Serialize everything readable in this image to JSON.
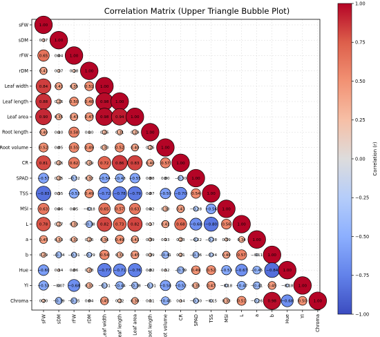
{
  "chart_data": {
    "type": "heatmap",
    "title": "Correlation Matrix (Upper Triangle Bubble Plot)",
    "variables": [
      "sFW",
      "sDM",
      "rFW",
      "rDM",
      "Leaf width",
      "Leaf length",
      "Leaf area",
      "Root length",
      "Root volume",
      "CR",
      "SPAD",
      "TSS",
      "MSI",
      "L",
      "a",
      "b",
      "Hue",
      "YI",
      "Chroma"
    ],
    "lower_triangle": [
      [],
      [
        0.17
      ],
      [
        0.65,
        0.04
      ],
      [
        0.41,
        0.17,
        0.18
      ],
      [
        0.84,
        0.41,
        0.35,
        0.51
      ],
      [
        0.88,
        0.26,
        0.5,
        0.48,
        0.98
      ],
      [
        0.9,
        0.35,
        0.43,
        0.47,
        0.98,
        0.94
      ],
      [
        0.4,
        0.1,
        0.58,
        0.1,
        0.26,
        0.31,
        0.29
      ],
      [
        0.52,
        0.05,
        0.55,
        0.49,
        0.3,
        0.52,
        0.4,
        0.25
      ],
      [
        0.81,
        0.26,
        0.62,
        0.29,
        0.72,
        0.86,
        0.83,
        0.4,
        0.57
      ],
      [
        -0.57,
        0.25,
        -0.32,
        0.32,
        -0.54,
        -0.48,
        -0.55,
        0.08,
        0.0,
        -0.3
      ],
      [
        -0.83,
        0.15,
        -0.53,
        0.49,
        -0.72,
        -0.78,
        -0.79,
        0.07,
        -0.59,
        -0.7,
        0.54
      ],
      [
        0.63,
        0.06,
        0.05,
        -0.18,
        0.65,
        0.57,
        0.63,
        0.02,
        0.3,
        0.43,
        -0.28,
        -0.56
      ],
      [
        0.78,
        0.27,
        0.33,
        -0.38,
        0.82,
        0.73,
        0.82,
        0.17,
        0.41,
        0.68,
        -0.68,
        -0.8,
        0.56
      ],
      [
        0.45,
        0.33,
        0.32,
        0.26,
        0.36,
        0.49,
        0.41,
        0.19,
        0.13,
        0.23,
        -0.22,
        -0.28,
        0.19,
        0.34
      ],
      [
        0.29,
        -0.34,
        -0.31,
        -0.29,
        0.54,
        0.33,
        0.45,
        0.19,
        -0.41,
        0.21,
        -0.36,
        -0.24,
        0.4,
        0.57,
        -0.11
      ],
      [
        -0.6,
        0.14,
        0.06,
        0.28,
        -0.77,
        -0.71,
        -0.76,
        0.02,
        0.12,
        -0.39,
        0.49,
        0.52,
        -0.53,
        -0.67,
        -0.45,
        -0.84
      ],
      [
        -0.53,
        -0.07,
        -0.68,
        0.33,
        -0.31,
        -0.44,
        -0.38,
        -0.31,
        -0.58,
        -0.52,
        0.35,
        0.47,
        -0.18,
        -0.47,
        -0.41,
        0.45,
        -0.18
      ],
      [
        0.2,
        -0.39,
        -0.35,
        0.04,
        0.45,
        0.22,
        0.38,
        0.11,
        -0.46,
        0.14,
        -0.3,
        -0.15,
        0.33,
        0.51,
        -0.26,
        0.98,
        -0.68,
        0.5
      ]
    ],
    "colorbar": {
      "label": "Correlation (r)",
      "range": [
        -1,
        1
      ],
      "ticks": [
        "1.00",
        "0.75",
        "0.50",
        "0.25",
        "0.00",
        "−0.25",
        "−0.50",
        "−0.75",
        "−1.00"
      ],
      "colormap": "coolwarm"
    },
    "grid": true
  }
}
